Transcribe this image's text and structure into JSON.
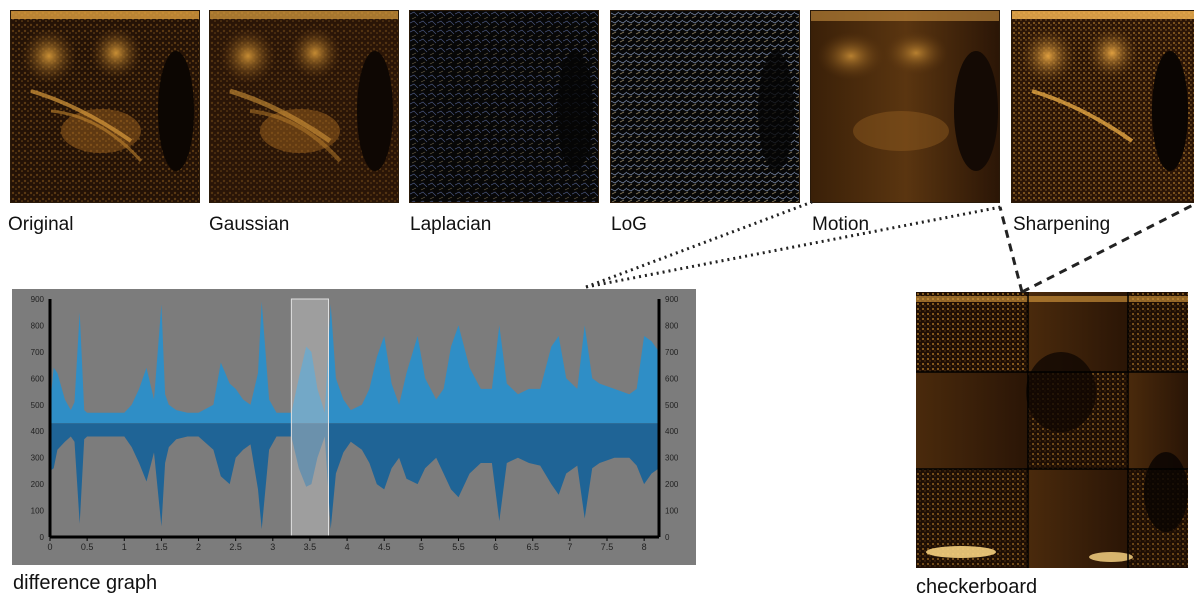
{
  "filters": [
    {
      "label": "Original"
    },
    {
      "label": "Gaussian"
    },
    {
      "label": "Laplacian"
    },
    {
      "label": "LoG"
    },
    {
      "label": "Motion"
    },
    {
      "label": "Sharpening"
    }
  ],
  "difference_graph": {
    "caption": "difference graph"
  },
  "checkerboard": {
    "caption": "checkerboard"
  },
  "chart_data": {
    "type": "area",
    "title": "",
    "xlabel": "",
    "ylabel": "",
    "xlim": [
      0,
      8.2
    ],
    "ylim": [
      0,
      900
    ],
    "x_ticks": [
      "0",
      "0.5",
      "1",
      "1.5",
      "2",
      "2.5",
      "3",
      "3.5",
      "4",
      "4.5",
      "5",
      "5.5",
      "6",
      "6.5",
      "7",
      "7.5",
      "8"
    ],
    "y_ticks_left": [
      "0",
      "100",
      "200",
      "300",
      "400",
      "500",
      "600",
      "700",
      "800",
      "900"
    ],
    "y_ticks_right": [
      "0",
      "100",
      "200",
      "300",
      "400",
      "500",
      "600",
      "700",
      "800",
      "900"
    ],
    "highlight_range": [
      3.25,
      3.75
    ],
    "series": [
      {
        "color": "#2f8ec6",
        "x": [
          0,
          0.05,
          0.1,
          0.2,
          0.28,
          0.33,
          0.4,
          0.46,
          0.5,
          0.6,
          0.8,
          1.0,
          1.1,
          1.2,
          1.3,
          1.4,
          1.5,
          1.55,
          1.6,
          1.7,
          1.85,
          2.0,
          2.2,
          2.3,
          2.42,
          2.5,
          2.6,
          2.7,
          2.8,
          2.85,
          2.95,
          3.05,
          3.15,
          3.25,
          3.35,
          3.45,
          3.52,
          3.6,
          3.7,
          3.78,
          3.85,
          3.95,
          4.05,
          4.2,
          4.3,
          4.4,
          4.5,
          4.6,
          4.7,
          4.8,
          4.95,
          5.05,
          5.2,
          5.3,
          5.4,
          5.5,
          5.65,
          5.8,
          5.95,
          6.05,
          6.15,
          6.3,
          6.45,
          6.6,
          6.75,
          6.85,
          6.95,
          7.1,
          7.2,
          7.3,
          7.4,
          7.6,
          7.8,
          7.9,
          8.0,
          8.1,
          8.2
        ],
        "values": [
          500,
          640,
          620,
          520,
          480,
          510,
          850,
          480,
          470,
          470,
          470,
          470,
          500,
          560,
          640,
          520,
          880,
          540,
          500,
          480,
          470,
          470,
          500,
          660,
          580,
          560,
          520,
          500,
          620,
          890,
          520,
          470,
          470,
          470,
          600,
          720,
          700,
          560,
          470,
          880,
          600,
          520,
          480,
          500,
          560,
          680,
          760,
          580,
          500,
          620,
          760,
          600,
          520,
          560,
          720,
          800,
          640,
          560,
          560,
          800,
          580,
          540,
          560,
          560,
          720,
          760,
          600,
          560,
          800,
          600,
          580,
          560,
          540,
          560,
          760,
          740,
          700
        ]
      },
      {
        "color": "#1f6496",
        "x": [
          0,
          0.05,
          0.1,
          0.2,
          0.28,
          0.33,
          0.4,
          0.46,
          0.5,
          0.6,
          0.8,
          1.0,
          1.1,
          1.2,
          1.3,
          1.4,
          1.5,
          1.55,
          1.6,
          1.7,
          1.85,
          2.0,
          2.2,
          2.3,
          2.42,
          2.5,
          2.6,
          2.7,
          2.8,
          2.85,
          2.95,
          3.05,
          3.15,
          3.25,
          3.35,
          3.45,
          3.52,
          3.6,
          3.7,
          3.78,
          3.85,
          3.95,
          4.05,
          4.2,
          4.3,
          4.4,
          4.5,
          4.6,
          4.7,
          4.8,
          4.95,
          5.05,
          5.2,
          5.3,
          5.4,
          5.5,
          5.65,
          5.8,
          5.95,
          6.05,
          6.15,
          6.3,
          6.45,
          6.6,
          6.75,
          6.85,
          6.95,
          7.1,
          7.2,
          7.3,
          7.4,
          7.6,
          7.8,
          7.9,
          8.0,
          8.1,
          8.2
        ],
        "values": [
          250,
          260,
          330,
          360,
          380,
          360,
          50,
          370,
          380,
          380,
          380,
          380,
          340,
          280,
          210,
          320,
          40,
          280,
          340,
          370,
          380,
          380,
          330,
          230,
          200,
          300,
          330,
          350,
          180,
          30,
          330,
          380,
          380,
          380,
          260,
          190,
          200,
          300,
          380,
          30,
          240,
          320,
          360,
          330,
          280,
          200,
          180,
          260,
          300,
          220,
          200,
          260,
          300,
          240,
          180,
          150,
          240,
          280,
          280,
          60,
          280,
          300,
          280,
          270,
          200,
          160,
          240,
          270,
          70,
          260,
          280,
          300,
          300,
          270,
          200,
          240,
          260
        ]
      }
    ]
  }
}
